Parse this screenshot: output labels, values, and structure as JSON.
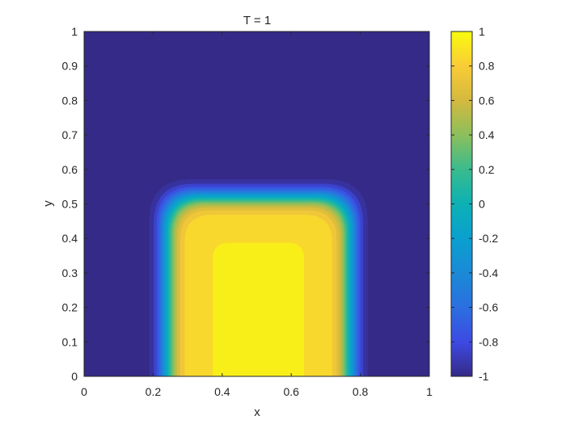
{
  "chart_data": {
    "type": "heatmap",
    "title": "T = 1",
    "xlabel": "x",
    "ylabel": "y",
    "xlim": [
      0,
      1
    ],
    "ylim": [
      0,
      1
    ],
    "x_ticks": [
      "0",
      "0.2",
      "0.4",
      "0.6",
      "0.8",
      "1"
    ],
    "y_ticks": [
      "0",
      "0.1",
      "0.2",
      "0.3",
      "0.4",
      "0.5",
      "0.6",
      "0.7",
      "0.8",
      "0.9",
      "1"
    ],
    "colorbar": {
      "clim": [
        -1,
        1
      ],
      "ticks": [
        "-1",
        "-0.8",
        "-0.6",
        "-0.4",
        "-0.2",
        "0",
        "0.2",
        "0.4",
        "0.6",
        "0.8",
        "1"
      ],
      "colormap": "parula"
    },
    "field": {
      "background_value": -1,
      "region_value": 1,
      "region": {
        "x_min": 0.24,
        "x_max": 0.77,
        "y_min": 0.0,
        "y_max": 0.52,
        "corner_radius": 0.1
      },
      "interface_width": 0.035
    }
  }
}
